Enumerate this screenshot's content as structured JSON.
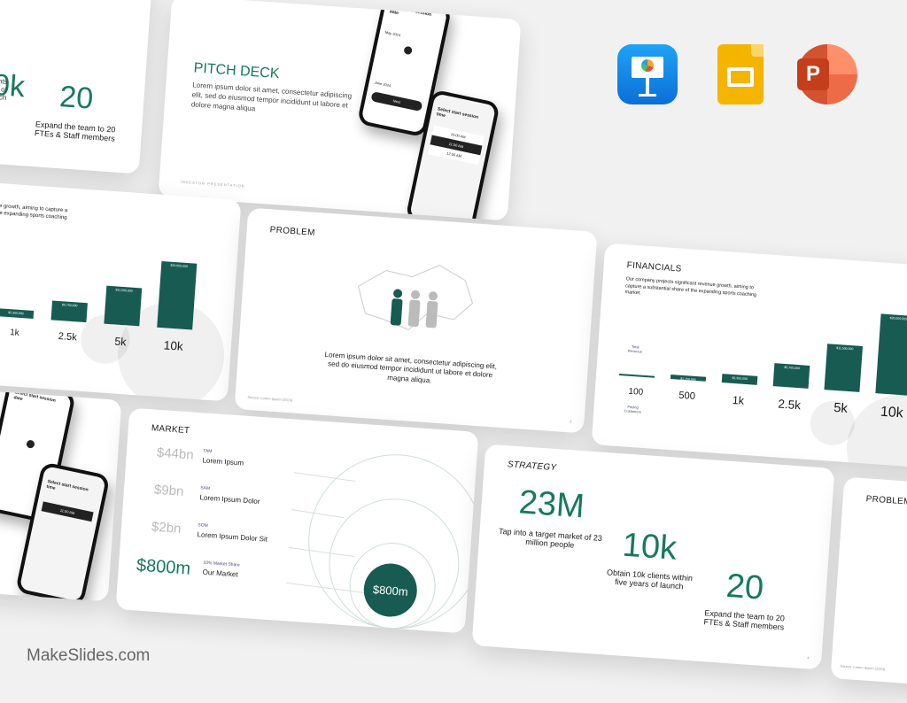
{
  "strategy": {
    "title": "STRATEGY",
    "stats": [
      {
        "value": "23M",
        "caption": "Tap into a target market of 23 million people"
      },
      {
        "value": "10k",
        "caption": "Obtain 10k clients within five years of launch"
      },
      {
        "value": "20",
        "caption": "Expand the team to 20 FTEs & Staff members"
      }
    ],
    "partial_caption": "Obtain 10k clients within five years of launch",
    "page": "4"
  },
  "pitch": {
    "title": "PITCH DECK",
    "body": "Lorem ipsum dolor sit amet, consectetur adipiscing elit, sed do eiusmod tempor incididunt ut labore et dolore magna aliqua",
    "footer": "INVESTOR PRESENTATION",
    "phone1": {
      "heading": "Select start session date",
      "month1": "May 2024",
      "month2": "June 2024",
      "button": "Next"
    },
    "phone2": {
      "heading": "Select start session time",
      "slots": [
        "10:00 AM",
        "11:00 AM",
        "12:00 AM"
      ]
    }
  },
  "problem": {
    "title": "PROBLEM",
    "body": "Lorem ipsum dolor sit amet, consectetur adipiscing elit, sed do eiusmod tempor incididunt ut labore et dolore magna aliqua.",
    "source": "Source: Lorem Ipsum (2024)",
    "page": "3"
  },
  "financials": {
    "title": "FINANCIALS",
    "body": "Our company projects significant revenue growth, aiming to capture a substantial share of the expanding sports coaching market.",
    "revenue_label": "Total Revenue",
    "customers_label": "Paying Customers",
    "customers": [
      "100",
      "500",
      "1k",
      "2.5k",
      "5k",
      "10k"
    ],
    "revenue": [
      "",
      "$1,150,000",
      "$2,300,000",
      "$5,750,000",
      "$11,500,000",
      "$20,000,000"
    ],
    "revenue_values": [
      230000,
      1150000,
      2300000,
      5750000,
      11500000,
      20000000
    ],
    "partial_body": "Our company projects significant revenue growth, aiming to capture a substantial share of the expanding sports coaching"
  },
  "market": {
    "title": "MARKET",
    "rows": [
      {
        "value": "$44bn",
        "tag": "TAM",
        "label": "Lorem Ipsum"
      },
      {
        "value": "$9bn",
        "tag": "SAM",
        "label": "Lorem Ipsum Dolor"
      },
      {
        "value": "$2bn",
        "tag": "SOM",
        "label": "Lorem Ipsum Dolor Sit"
      },
      {
        "value": "$800m",
        "tag": "10% Market Share",
        "label": "Our Market"
      }
    ],
    "circle": "$800m"
  },
  "apps": [
    "keynote-icon",
    "google-slides-icon",
    "powerpoint-icon"
  ],
  "watermark": "MakeSlides.com",
  "colors": {
    "accent": "#167a5b",
    "bar": "#175b52",
    "background": "#f1f1f1"
  }
}
